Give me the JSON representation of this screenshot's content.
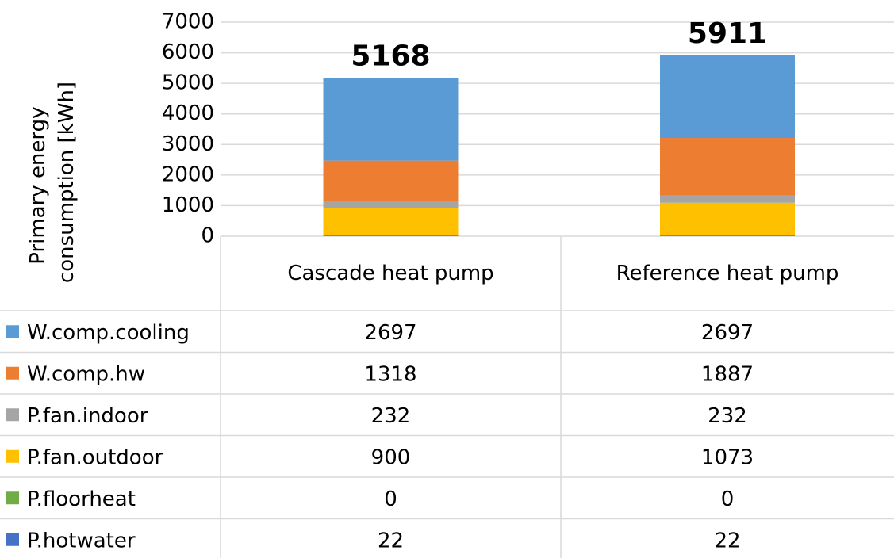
{
  "chart_data": {
    "type": "stacked-bar",
    "y_label": "Primary energy consumption  [kWh]",
    "categories": [
      "Cascade heat pump",
      "Reference heat pump"
    ],
    "totals": [
      5168,
      5911
    ],
    "series": [
      {
        "name": "W.comp.cooling",
        "color": "#5b9bd5",
        "values": [
          2697,
          2697
        ]
      },
      {
        "name": "W.comp.hw",
        "color": "#ed7d31",
        "values": [
          1318,
          1887
        ]
      },
      {
        "name": "P.fan.indoor",
        "color": "#a5a5a5",
        "values": [
          232,
          232
        ]
      },
      {
        "name": "P.fan.outdoor",
        "color": "#ffc000",
        "values": [
          900,
          1073
        ]
      },
      {
        "name": "P.floorheat",
        "color": "#70ad47",
        "values": [
          0,
          0
        ]
      },
      {
        "name": "P.hotwater",
        "color": "#4472c4",
        "values": [
          22,
          22
        ]
      }
    ],
    "ylim": [
      0,
      7000
    ],
    "yticks": [
      0,
      1000,
      2000,
      3000,
      4000,
      5000,
      6000,
      7000
    ],
    "grid": true
  }
}
